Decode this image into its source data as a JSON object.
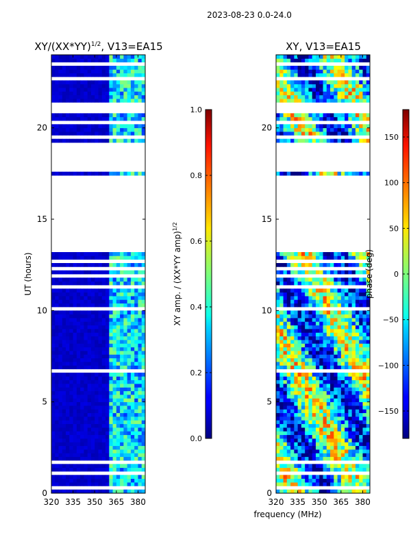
{
  "suptitle": "2023-08-23 0.0-24.0",
  "xlabel_shared": "frequency (MHz)",
  "chart_data": [
    {
      "type": "heatmap",
      "title_main": "XY/(XX*YY)",
      "title_exp": "1/2",
      "title_suffix": ", V13=EA15",
      "ylabel": "UT (hours)",
      "xlim": [
        320,
        385
      ],
      "ylim": [
        0,
        24
      ],
      "xticks": [
        320,
        335,
        350,
        365,
        380
      ],
      "yticks": [
        0,
        5,
        10,
        15,
        20
      ],
      "colorbar": {
        "label_main": "XY amp. / (XX*YY amp)",
        "label_exp": "1/2",
        "range": [
          0.0,
          1.0
        ],
        "ticks": [
          "0.0",
          "0.2",
          "0.4",
          "0.6",
          "0.8",
          "1.0"
        ],
        "colormap": "jet"
      },
      "bands": [
        {
          "x": [
            320,
            361
          ],
          "level": 0.05
        },
        {
          "x": [
            361,
            385
          ],
          "level": 0.35
        }
      ]
    },
    {
      "type": "heatmap",
      "title": "XY, V13=EA15",
      "ylabel": "phase (deg)",
      "xlim": [
        320,
        385
      ],
      "ylim": [
        0,
        24
      ],
      "xticks": [
        320,
        335,
        350,
        365,
        380
      ],
      "yticks": [
        0,
        5,
        10,
        15,
        20
      ],
      "colorbar": {
        "label": "phase (deg)",
        "range": [
          -180,
          180
        ],
        "ticks": [
          "150",
          "100",
          "50",
          "0",
          "−50",
          "−100",
          "−150"
        ],
        "colormap": "jet"
      }
    }
  ],
  "data_gaps_hours": [
    [
      13.1,
      17.4
    ],
    [
      17.6,
      19.2
    ],
    [
      20.8,
      21.3
    ],
    [
      0.3,
      0.4
    ],
    [
      1.1,
      1.2
    ],
    [
      1.7,
      1.8
    ],
    [
      2.1,
      2.2
    ],
    [
      3.4,
      3.5
    ],
    [
      3.6,
      3.7
    ],
    [
      4.4,
      4.5
    ],
    [
      5.6,
      5.7
    ],
    [
      6.0,
      6.1
    ],
    [
      6.7,
      6.8
    ],
    [
      7.6,
      7.7
    ],
    [
      8.4,
      8.5
    ],
    [
      9.0,
      9.1
    ],
    [
      9.5,
      9.6
    ],
    [
      10.0,
      10.1
    ],
    [
      10.5,
      10.6
    ],
    [
      11.2,
      11.3
    ],
    [
      11.8,
      11.9
    ],
    [
      12.2,
      12.3
    ],
    [
      12.6,
      12.7
    ],
    [
      19.4,
      19.5
    ],
    [
      20.2,
      20.3
    ],
    [
      22.1,
      22.2
    ],
    [
      22.6,
      22.7
    ],
    [
      23.1,
      23.2
    ],
    [
      23.4,
      23.5
    ]
  ]
}
